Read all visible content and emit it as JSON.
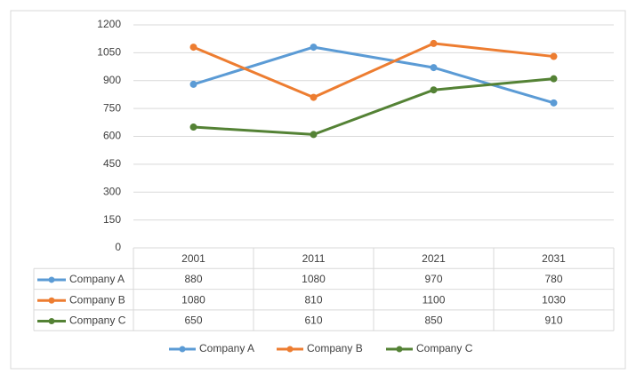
{
  "chart_data": {
    "type": "line",
    "categories": [
      "2001",
      "2011",
      "2021",
      "2031"
    ],
    "series": [
      {
        "name": "Company A",
        "color": "#5b9bd5",
        "values": [
          880,
          1080,
          970,
          780
        ]
      },
      {
        "name": "Company B",
        "color": "#ed7d31",
        "values": [
          1080,
          810,
          1100,
          1030
        ]
      },
      {
        "name": "Company C",
        "color": "#548235",
        "values": [
          650,
          610,
          850,
          910
        ]
      }
    ],
    "ylim": [
      0,
      1200
    ],
    "yticks": [
      0,
      150,
      300,
      450,
      600,
      750,
      900,
      1050,
      1200
    ],
    "grid": true,
    "legend": "bottom",
    "data_table": true
  }
}
